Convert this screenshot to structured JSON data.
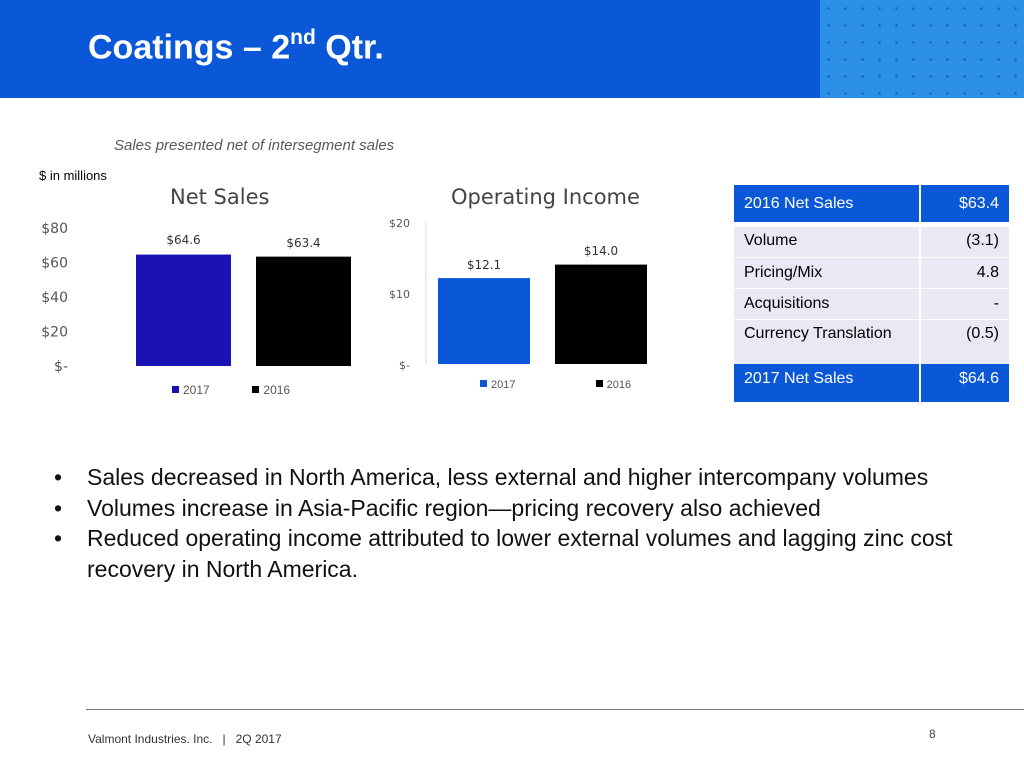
{
  "slide": {
    "title_main": "Coatings – 2",
    "title_sup": "nd",
    "title_end": " Qtr.",
    "subtitle": "Sales presented net of intersegment sales",
    "units_note": "$ in millions"
  },
  "colors": {
    "header": "#0a58d8",
    "bar_2017": "#1a12b5",
    "bar_2017_oi": "#0a58d8",
    "bar_2016": "#000000"
  },
  "chart_data": [
    {
      "type": "bar",
      "title": "Net Sales",
      "categories": [
        "2017",
        "2016"
      ],
      "values": [
        64.6,
        63.4
      ],
      "value_labels": [
        "$64.6",
        "$63.4"
      ],
      "yticks": [
        "$-",
        "$20",
        "$40",
        "$60",
        "$80"
      ],
      "ylim": [
        0,
        80
      ],
      "legend": [
        "2017",
        "2016"
      ],
      "legend_position": "bottom"
    },
    {
      "type": "bar",
      "title": "Operating Income",
      "categories": [
        "2017",
        "2016"
      ],
      "values": [
        12.1,
        14.0
      ],
      "value_labels": [
        "$12.1",
        "$14.0"
      ],
      "yticks": [
        "$-",
        "$10",
        "$20"
      ],
      "ylim": [
        0,
        20
      ],
      "legend": [
        "2017",
        "2016"
      ],
      "legend_position": "bottom"
    }
  ],
  "bridge_table": {
    "rows": [
      {
        "label": "2016 Net Sales",
        "value": "$63.4"
      },
      {
        "label": "Volume",
        "value": "(3.1)"
      },
      {
        "label": "Pricing/Mix",
        "value": "4.8"
      },
      {
        "label": "Acquisitions",
        "value": "-"
      },
      {
        "label": "Currency Translation",
        "value": "(0.5)"
      },
      {
        "label": "2017 Net Sales",
        "value": "$64.6"
      }
    ]
  },
  "bullets": [
    "Sales decreased in North America, less external and higher intercompany volumes",
    "Volumes increase in Asia-Pacific region—pricing recovery also achieved",
    "Reduced operating income attributed to lower external volumes and lagging zinc cost recovery in North America."
  ],
  "footer": {
    "company": "Valmont Industries. Inc.   |   2Q 2017",
    "page": "8"
  }
}
